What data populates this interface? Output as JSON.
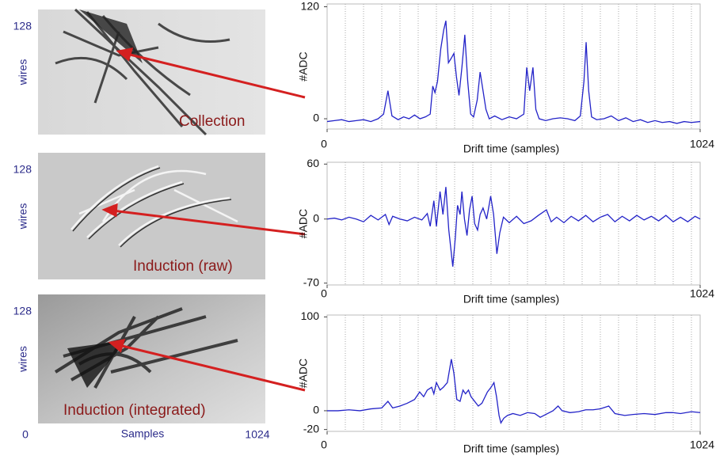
{
  "panels": [
    {
      "ymax": "128",
      "ylabel": "wires",
      "label": "Collection"
    },
    {
      "ymax": "128",
      "ylabel": "wires",
      "label": "Induction (raw)"
    },
    {
      "ymax": "128",
      "ylabel": "wires",
      "label": "Induction (integrated)"
    }
  ],
  "panel_xaxis": {
    "min": "0",
    "label": "Samples",
    "max": "1024"
  },
  "chart_data": [
    {
      "type": "line",
      "xlabel": "Drift time (samples)",
      "ylabel": "#ADC",
      "color": "#2323c8",
      "xlim": [
        0,
        1024
      ],
      "xticks": [
        0,
        1024
      ],
      "ylim": [
        -11,
        123
      ],
      "yticks": [
        0,
        120
      ],
      "xgrid": [
        50,
        100,
        150,
        200,
        250,
        300,
        350,
        400,
        450,
        500,
        550,
        600,
        650,
        700,
        750,
        800,
        850,
        900,
        950,
        1000
      ],
      "x": [
        0,
        20,
        40,
        60,
        80,
        100,
        120,
        140,
        155,
        167,
        178,
        195,
        210,
        225,
        240,
        255,
        270,
        283,
        290,
        296,
        303,
        312,
        320,
        326,
        333,
        341,
        348,
        355,
        362,
        370,
        378,
        386,
        394,
        402,
        412,
        420,
        428,
        436,
        445,
        460,
        480,
        500,
        520,
        540,
        548,
        556,
        565,
        573,
        582,
        600,
        620,
        640,
        660,
        680,
        695,
        705,
        711,
        718,
        726,
        740,
        760,
        780,
        800,
        820,
        840,
        860,
        880,
        900,
        920,
        940,
        960,
        980,
        1000,
        1024
      ],
      "values": [
        -3,
        -2,
        -1,
        -3,
        -2,
        -1,
        -3,
        0,
        5,
        30,
        3,
        -1,
        2,
        0,
        4,
        0,
        2,
        5,
        35,
        28,
        40,
        75,
        95,
        105,
        60,
        65,
        70,
        45,
        25,
        55,
        90,
        40,
        5,
        2,
        20,
        50,
        30,
        10,
        0,
        3,
        -1,
        2,
        0,
        5,
        55,
        30,
        55,
        10,
        0,
        -2,
        0,
        1,
        0,
        -2,
        3,
        40,
        82,
        30,
        2,
        -1,
        0,
        3,
        -2,
        1,
        -3,
        -1,
        -4,
        -2,
        -4,
        -3,
        -5,
        -3,
        -4,
        -3
      ]
    },
    {
      "type": "line",
      "xlabel": "Drift time (samples)",
      "ylabel": "#ADC",
      "color": "#2323c8",
      "xlim": [
        0,
        1024
      ],
      "xticks": [
        0,
        1024
      ],
      "ylim": [
        -72,
        62
      ],
      "yticks": [
        -70,
        0,
        60
      ],
      "xgrid": [
        50,
        100,
        150,
        200,
        250,
        300,
        350,
        400,
        450,
        500,
        550,
        600,
        650,
        700,
        750,
        800,
        850,
        900,
        950,
        1000
      ],
      "x": [
        0,
        20,
        40,
        60,
        80,
        100,
        120,
        140,
        160,
        170,
        180,
        200,
        220,
        240,
        260,
        275,
        283,
        293,
        300,
        310,
        318,
        326,
        334,
        345,
        352,
        358,
        365,
        370,
        377,
        384,
        391,
        398,
        405,
        413,
        420,
        428,
        438,
        449,
        457,
        466,
        474,
        484,
        500,
        520,
        540,
        560,
        580,
        602,
        615,
        630,
        650,
        670,
        690,
        710,
        730,
        750,
        770,
        790,
        810,
        830,
        850,
        870,
        890,
        910,
        930,
        950,
        970,
        990,
        1010,
        1024
      ],
      "values": [
        0,
        1,
        -1,
        2,
        0,
        -3,
        4,
        -1,
        5,
        -6,
        3,
        0,
        -2,
        2,
        -1,
        6,
        -8,
        20,
        -8,
        30,
        5,
        35,
        -12,
        -52,
        -20,
        15,
        5,
        30,
        0,
        -18,
        10,
        25,
        -5,
        -12,
        5,
        12,
        0,
        25,
        5,
        -38,
        -15,
        2,
        -4,
        3,
        -5,
        -2,
        4,
        10,
        -3,
        2,
        -4,
        3,
        -2,
        4,
        -3,
        2,
        5,
        -3,
        3,
        -2,
        4,
        -1,
        3,
        -2,
        4,
        -3,
        2,
        -3,
        3,
        0
      ]
    },
    {
      "type": "line",
      "xlabel": "Drift time (samples)",
      "ylabel": "#ADC",
      "color": "#2323c8",
      "xlim": [
        0,
        1024
      ],
      "xticks": [
        0,
        1024
      ],
      "ylim": [
        -22,
        102
      ],
      "yticks": [
        -20,
        0,
        100
      ],
      "xgrid": [
        50,
        100,
        150,
        200,
        250,
        300,
        350,
        400,
        450,
        500,
        550,
        600,
        650,
        700,
        750,
        800,
        850,
        900,
        950,
        1000
      ],
      "x": [
        0,
        30,
        60,
        90,
        120,
        150,
        167,
        180,
        200,
        220,
        240,
        254,
        265,
        275,
        287,
        293,
        300,
        310,
        319,
        330,
        341,
        348,
        356,
        365,
        373,
        380,
        388,
        395,
        405,
        415,
        425,
        440,
        450,
        458,
        465,
        472,
        477,
        485,
        495,
        510,
        530,
        550,
        570,
        585,
        600,
        620,
        634,
        645,
        667,
        690,
        710,
        730,
        750,
        773,
        790,
        817,
        840,
        870,
        900,
        930,
        949,
        970,
        1000,
        1024
      ],
      "values": [
        0,
        0,
        1,
        0,
        2,
        3,
        10,
        3,
        5,
        8,
        12,
        20,
        15,
        22,
        25,
        18,
        30,
        22,
        25,
        30,
        55,
        40,
        12,
        10,
        22,
        18,
        22,
        15,
        10,
        5,
        8,
        20,
        25,
        30,
        15,
        -5,
        -13,
        -8,
        -5,
        -3,
        -5,
        -2,
        -3,
        -7,
        -4,
        0,
        5,
        0,
        -2,
        -1,
        1,
        1,
        2,
        5,
        -3,
        -5,
        -4,
        -3,
        -4,
        -2,
        -2,
        -3,
        -1,
        -2
      ]
    }
  ]
}
